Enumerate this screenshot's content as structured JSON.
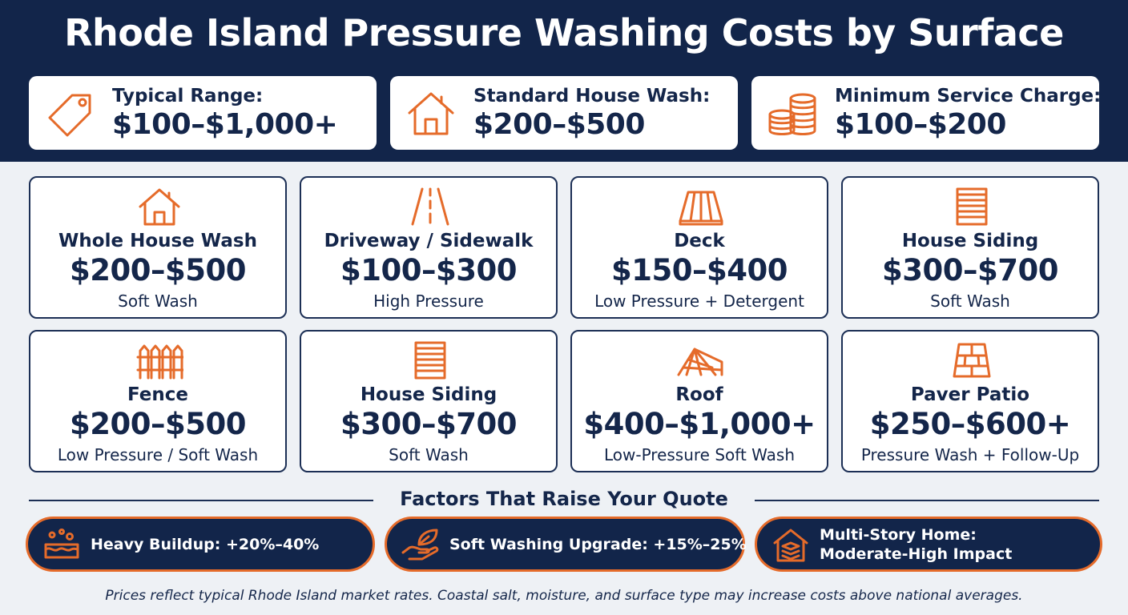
{
  "title": "Rhode Island Pressure Washing Costs by Surface",
  "summary": [
    {
      "icon": "price-tag-icon",
      "label": "Typical Range:",
      "value": "$100–$1,000+"
    },
    {
      "icon": "house-icon",
      "label": "Standard House Wash:",
      "value": "$200–$500"
    },
    {
      "icon": "coins-icon",
      "label": "Minimum Service Charge:",
      "value": "$100–$200"
    }
  ],
  "cards": [
    {
      "icon": "house-icon",
      "name": "Whole House Wash",
      "price": "$200–$500",
      "method": "Soft Wash"
    },
    {
      "icon": "road-icon",
      "name": "Driveway / Sidewalk",
      "price": "$100–$300",
      "method": "High Pressure"
    },
    {
      "icon": "deck-icon",
      "name": "Deck",
      "price": "$150–$400",
      "method": "Low Pressure + Detergent"
    },
    {
      "icon": "siding-icon",
      "name": "House Siding",
      "price": "$300–$700",
      "method": "Soft Wash"
    },
    {
      "icon": "fence-icon",
      "name": "Fence",
      "price": "$200–$500",
      "method": "Low Pressure / Soft Wash"
    },
    {
      "icon": "siding-icon",
      "name": "House Siding",
      "price": "$300–$700",
      "method": "Soft Wash"
    },
    {
      "icon": "roof-icon",
      "name": "Roof",
      "price": "$400–$1,000+",
      "method": "Low-Pressure Soft Wash"
    },
    {
      "icon": "paver-icon",
      "name": "Paver Patio",
      "price": "$250–$600+",
      "method": "Pressure Wash + Follow-Up"
    }
  ],
  "factors": {
    "title": "Factors That Raise Your Quote",
    "items": [
      {
        "icon": "buildup-icon",
        "text": "Heavy Buildup: +20%–40%"
      },
      {
        "icon": "hand-leaf-icon",
        "text": "Soft Washing Upgrade: +15%–25%"
      },
      {
        "icon": "multi-story-home-icon",
        "line1": "Multi-Story Home:",
        "line2": "Moderate-High Impact"
      }
    ]
  },
  "footnote": "Prices reflect typical Rhode Island market rates. Coastal salt, moisture, and surface type may increase costs above national averages.",
  "colors": {
    "navy": "#12254a",
    "accent": "#e56b2a",
    "background": "#eef1f5",
    "card": "#ffffff"
  }
}
